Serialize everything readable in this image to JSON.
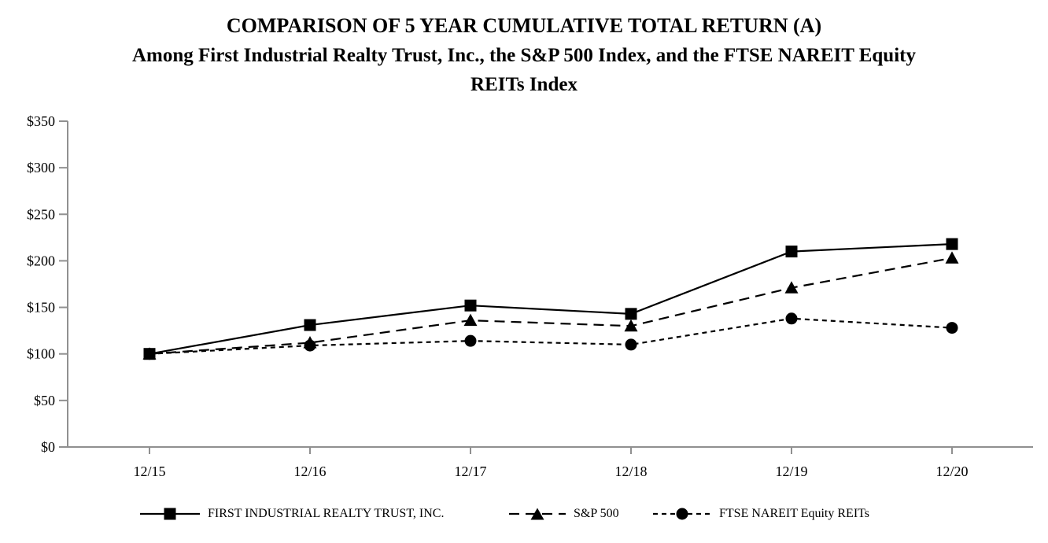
{
  "title": {
    "line1": "COMPARISON OF 5 YEAR CUMULATIVE TOTAL RETURN (A)",
    "line2": "Among First Industrial Realty Trust, Inc., the S&P 500 Index, and the FTSE NAREIT Equity",
    "line3": "REITs Index"
  },
  "legend": {
    "items": [
      {
        "label": "FIRST INDUSTRIAL REALTY TRUST, INC.",
        "marker": "square",
        "line_style": "solid"
      },
      {
        "label": "S&P 500",
        "marker": "triangle",
        "line_style": "dashed"
      },
      {
        "label": "FTSE NAREIT Equity REITs",
        "marker": "circle",
        "line_style": "dotted"
      }
    ]
  },
  "chart_data": {
    "type": "line",
    "title": "COMPARISON OF 5 YEAR CUMULATIVE TOTAL RETURN (A) Among First Industrial Realty Trust, Inc., the S&P 500 Index, and the FTSE NAREIT Equity REITs Index",
    "categories": [
      "12/15",
      "12/16",
      "12/17",
      "12/18",
      "12/19",
      "12/20"
    ],
    "series": [
      {
        "name": "FIRST INDUSTRIAL REALTY TRUST, INC.",
        "marker": "square",
        "line_style": "solid",
        "values": [
          100,
          131,
          152,
          143,
          210,
          218
        ]
      },
      {
        "name": "S&P 500",
        "marker": "triangle",
        "line_style": "dashed",
        "values": [
          100,
          112,
          136,
          130,
          171,
          203
        ]
      },
      {
        "name": "FTSE NAREIT Equity REITs",
        "marker": "circle",
        "line_style": "dotted",
        "values": [
          100,
          109,
          114,
          110,
          138,
          128
        ]
      }
    ],
    "xlabel": "",
    "ylabel": "",
    "y_axis": {
      "tick_prefix": "$",
      "ticks": [
        0,
        50,
        100,
        150,
        200,
        250,
        300,
        350
      ],
      "ylim": [
        0,
        350
      ]
    },
    "grid": false,
    "legend_position": "bottom"
  },
  "colors": {
    "series": "#000000",
    "axis": "#909090",
    "text": "#000000",
    "background": "#ffffff"
  }
}
